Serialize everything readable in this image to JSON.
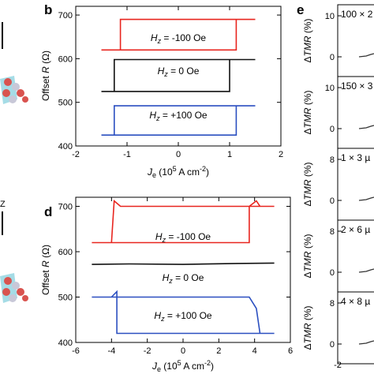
{
  "chart_data": [
    {
      "panel": "b",
      "type": "line",
      "xlabel": "J_e (10^5 A cm^-2)",
      "ylabel": "Offset R (Ω)",
      "xlim": [
        -2,
        2
      ],
      "ylim": [
        400,
        720
      ],
      "xticks": [
        "-2",
        "-1",
        "0",
        "1",
        "2"
      ],
      "yticks": [
        "400",
        "500",
        "600",
        "700"
      ],
      "series": [
        {
          "name": "H_z = -100 Oe",
          "color": "#e8251f",
          "x": [
            -1.5,
            -1.13,
            -1.13,
            1.5,
            1.13,
            1.13,
            -1.5
          ],
          "y": [
            620,
            620,
            690,
            690,
            690,
            620,
            620
          ]
        },
        {
          "name": "H_z = 0 Oe",
          "color": "#111111",
          "x": [
            -1.5,
            -1.25,
            -1.25,
            1.5,
            1.0,
            1.0,
            -1.5
          ],
          "y": [
            525,
            525,
            598,
            598,
            598,
            525,
            525
          ]
        },
        {
          "name": "H_z = +100 Oe",
          "color": "#2b4fc0",
          "x": [
            -1.5,
            -1.25,
            -1.25,
            1.5,
            1.13,
            1.13,
            -1.5
          ],
          "y": [
            425,
            425,
            492,
            492,
            492,
            425,
            425
          ]
        }
      ],
      "labels": [
        {
          "main": "H",
          "sub": "z",
          "rest": " = -100 Oe"
        },
        {
          "main": "H",
          "sub": "z",
          "rest": " = 0 Oe"
        },
        {
          "main": "H",
          "sub": "z",
          "rest": " = +100 Oe"
        }
      ],
      "axis_text": {
        "xlabel_main": "J",
        "xlabel_sub": "e",
        "xlabel_rest": " (10",
        "xlabel_sup1": "5",
        "xlabel_rest2": " A cm",
        "xlabel_sup2": "-2",
        "xlabel_end": ")",
        "ylabel_main": "Offset ",
        "ylabel_italic": "R",
        "ylabel_end": " (Ω)"
      }
    },
    {
      "panel": "d",
      "type": "line",
      "xlabel": "J_e (10^5 A cm^-2)",
      "ylabel": "Offset R (Ω)",
      "xlim": [
        -6,
        6
      ],
      "ylim": [
        400,
        720
      ],
      "xticks": [
        "-6",
        "-4",
        "-2",
        "0",
        "2",
        "4",
        "6"
      ],
      "yticks": [
        "400",
        "500",
        "600",
        "700"
      ],
      "series": [
        {
          "name": "H_z = -100 Oe",
          "color": "#e8251f",
          "x": [
            -5.1,
            -4.0,
            -3.85,
            -3.5,
            5.1,
            4.3,
            4.1,
            3.7,
            3.7,
            -5.1
          ],
          "y": [
            620,
            620,
            712,
            700,
            700,
            700,
            712,
            700,
            620,
            620
          ]
        },
        {
          "name": "H_z = 0 Oe",
          "color": "#111111",
          "x": [
            -5.1,
            -3,
            0,
            3,
            5.1
          ],
          "y": [
            572,
            573,
            572,
            574,
            575
          ]
        },
        {
          "name": "H_z = +100 Oe",
          "color": "#2b4fc0",
          "x": [
            -5.1,
            -4.0,
            -3.7,
            -3.7,
            5.1,
            4.3,
            4.1,
            3.7,
            3.7,
            -5.1
          ],
          "y": [
            500,
            500,
            512,
            420,
            420,
            420,
            475,
            500,
            500,
            500
          ]
        }
      ],
      "labels": [
        {
          "main": "H",
          "sub": "z",
          "rest": " = -100 Oe"
        },
        {
          "main": "H",
          "sub": "z",
          "rest": " = 0 Oe"
        },
        {
          "main": "H",
          "sub": "z",
          "rest": " = +100 Oe"
        }
      ]
    },
    {
      "panel": "e",
      "type": "line",
      "xlabel": "",
      "ylabel": "ΔTMR (%)",
      "xticks_visible": [
        "-2"
      ],
      "subpanels": [
        {
          "label": "100 × 2",
          "ytick_top": "10",
          "ytick_bottom": "0"
        },
        {
          "label": "150 × 3",
          "ytick_top": "10",
          "ytick_bottom": "0"
        },
        {
          "label": "1 × 3 µ",
          "ytick_top": "8",
          "ytick_bottom": "0"
        },
        {
          "label": "2 × 6 µ",
          "ytick_top": "8",
          "ytick_bottom": "0"
        },
        {
          "label": "4 × 8 µ",
          "ytick_top": "8",
          "ytick_bottom": "0"
        }
      ],
      "ylabel_delta": "Δ",
      "ylabel_italic": "TMR",
      "ylabel_end": " (%)"
    }
  ],
  "panel_letters": {
    "b": "b",
    "d": "d",
    "e": "e"
  },
  "colors": {
    "red": "#e8251f",
    "black": "#111111",
    "blue": "#2b4fc0",
    "cyan": "#8fd3e0",
    "sphere": "#d9534f"
  }
}
